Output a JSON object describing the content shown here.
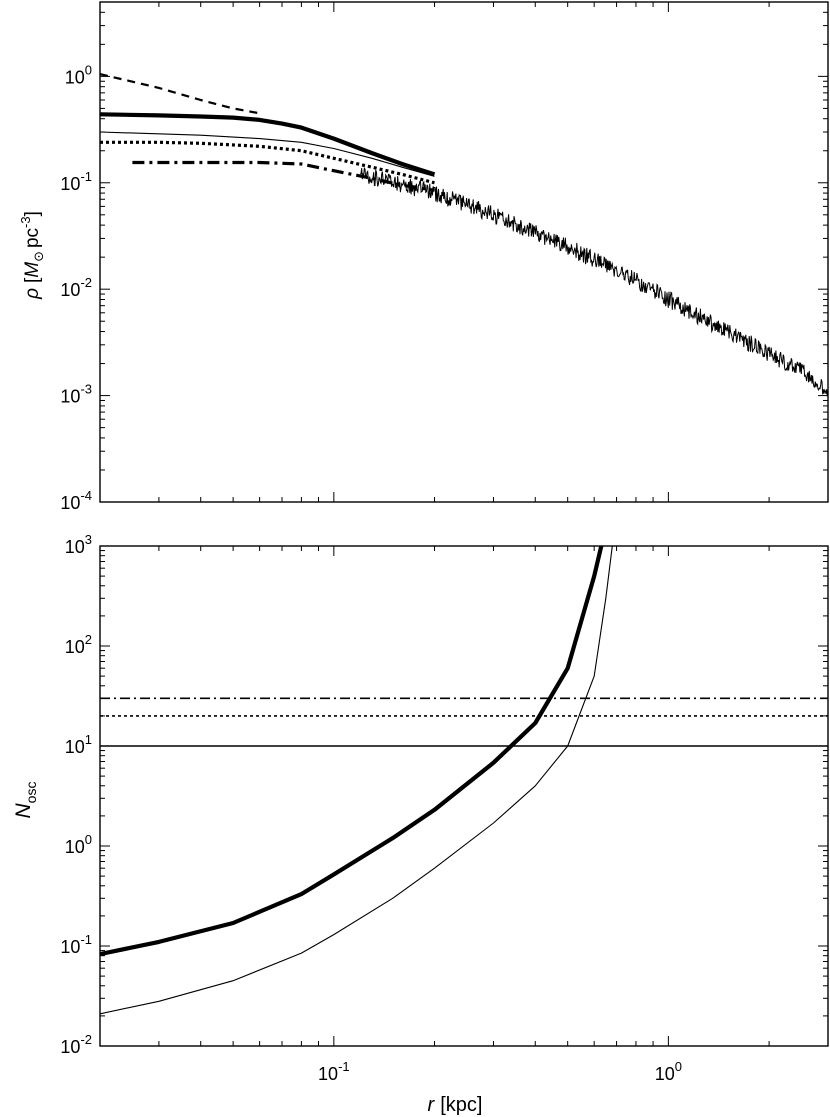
{
  "chart_data": [
    {
      "type": "line",
      "x_scale": "log",
      "y_scale": "log",
      "xlim": [
        0.02,
        3.0
      ],
      "ylim": [
        0.0001,
        5.0
      ],
      "y_ticks": [
        {
          "value": 1,
          "base": "10",
          "exp": "0"
        },
        {
          "value": 0.1,
          "base": "10",
          "exp": "-1"
        },
        {
          "value": 0.01,
          "base": "10",
          "exp": "-2"
        },
        {
          "value": 0.001,
          "base": "10",
          "exp": "-3"
        },
        {
          "value": 0.0001,
          "base": "10",
          "exp": "-4"
        }
      ],
      "ylabel": {
        "rho": "ρ",
        "open": "[",
        "m": "M",
        "sun": "⊙",
        "pc": "pc",
        "exp": "-3",
        "close": "]"
      },
      "series": [
        {
          "style": "dashed",
          "x": [
            0.02,
            0.03,
            0.04,
            0.05,
            0.06
          ],
          "y": [
            1.05,
            0.78,
            0.6,
            0.5,
            0.45
          ]
        },
        {
          "style": "thick",
          "x": [
            0.02,
            0.03,
            0.04,
            0.05,
            0.06,
            0.07,
            0.08,
            0.1,
            0.13,
            0.16,
            0.2
          ],
          "y": [
            0.44,
            0.43,
            0.42,
            0.41,
            0.39,
            0.36,
            0.33,
            0.26,
            0.19,
            0.15,
            0.12
          ]
        },
        {
          "style": "thin",
          "x": [
            0.02,
            0.04,
            0.06,
            0.08,
            0.1,
            0.13,
            0.16,
            0.2
          ],
          "y": [
            0.3,
            0.28,
            0.26,
            0.24,
            0.21,
            0.17,
            0.14,
            0.115
          ]
        },
        {
          "style": "dotted",
          "x": [
            0.02,
            0.03,
            0.04,
            0.06,
            0.08,
            0.1,
            0.13,
            0.16,
            0.2
          ],
          "y": [
            0.24,
            0.24,
            0.235,
            0.22,
            0.2,
            0.17,
            0.14,
            0.12,
            0.1
          ]
        },
        {
          "style": "dashdot",
          "x": [
            0.025,
            0.04,
            0.06,
            0.08,
            0.1,
            0.13,
            0.16,
            0.2
          ],
          "y": [
            0.155,
            0.155,
            0.155,
            0.15,
            0.13,
            0.11,
            0.095,
            0.085
          ]
        },
        {
          "style": "noisy-band",
          "x": [
            0.12,
            0.2,
            0.3,
            0.5,
            0.8,
            1.0,
            1.5,
            2.0,
            2.5,
            3.0
          ],
          "y": [
            0.12,
            0.08,
            0.05,
            0.025,
            0.012,
            0.008,
            0.004,
            0.0025,
            0.0017,
            0.0011
          ]
        }
      ]
    },
    {
      "type": "line",
      "x_scale": "log",
      "y_scale": "log",
      "xlim": [
        0.02,
        3.0
      ],
      "ylim": [
        0.01,
        1000
      ],
      "y_ticks": [
        {
          "value": 1000,
          "base": "10",
          "exp": "3"
        },
        {
          "value": 100,
          "base": "10",
          "exp": "2"
        },
        {
          "value": 10,
          "base": "10",
          "exp": "1"
        },
        {
          "value": 1,
          "base": "10",
          "exp": "0"
        },
        {
          "value": 0.1,
          "base": "10",
          "exp": "-1"
        },
        {
          "value": 0.01,
          "base": "10",
          "exp": "-2"
        }
      ],
      "x_ticks": [
        {
          "value": 0.1,
          "base": "10",
          "exp": "-1"
        },
        {
          "value": 1,
          "base": "10",
          "exp": "0"
        }
      ],
      "ylabel": {
        "n": "N",
        "sub": "osc"
      },
      "xlabel": {
        "r": "r",
        "unit": "[kpc]"
      },
      "series": [
        {
          "style": "thick",
          "x": [
            0.02,
            0.03,
            0.05,
            0.08,
            0.1,
            0.15,
            0.2,
            0.3,
            0.4,
            0.5,
            0.6,
            0.63
          ],
          "y": [
            0.083,
            0.11,
            0.17,
            0.33,
            0.52,
            1.2,
            2.3,
            6.8,
            17,
            60,
            500,
            1000
          ]
        },
        {
          "style": "thin",
          "x": [
            0.02,
            0.03,
            0.05,
            0.08,
            0.1,
            0.15,
            0.2,
            0.3,
            0.4,
            0.5,
            0.6,
            0.65,
            0.68
          ],
          "y": [
            0.021,
            0.028,
            0.045,
            0.085,
            0.13,
            0.3,
            0.6,
            1.7,
            4.0,
            10,
            50,
            300,
            1000
          ]
        },
        {
          "style": "solid-hline",
          "x": [
            0.02,
            3.0
          ],
          "y": [
            10,
            10
          ]
        },
        {
          "style": "dotted-hline",
          "x": [
            0.02,
            3.0
          ],
          "y": [
            20,
            20
          ]
        },
        {
          "style": "dashdot-hline",
          "x": [
            0.02,
            3.0
          ],
          "y": [
            30,
            30
          ]
        }
      ]
    }
  ]
}
